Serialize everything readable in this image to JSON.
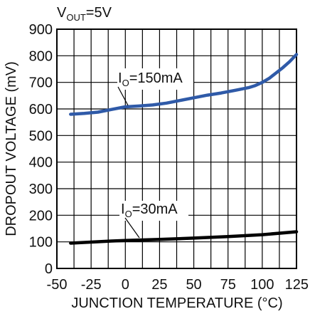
{
  "chart_data": {
    "type": "line",
    "title": "",
    "condition": {
      "label": "V",
      "sub": "OUT",
      "value": "=5V"
    },
    "xlabel": "JUNCTION TEMPERATURE (°C)",
    "ylabel": "DROPOUT VOLTAGE (mV)",
    "xlim": [
      -50,
      125
    ],
    "ylim": [
      0,
      900
    ],
    "xticks": [
      "-50",
      "-25",
      "0",
      "25",
      "50",
      "75",
      "100",
      "125"
    ],
    "yticks": [
      "0",
      "100",
      "200",
      "300",
      "400",
      "500",
      "600",
      "700",
      "800",
      "900"
    ],
    "grid": true,
    "series": [
      {
        "label_main": "I",
        "label_sub": "O",
        "label_rest": "=150mA",
        "color": "#2f5aa8",
        "x": [
          -40,
          -30,
          -20,
          -10,
          0,
          10,
          20,
          30,
          40,
          50,
          60,
          70,
          80,
          90,
          95,
          100,
          105,
          110,
          115,
          120,
          125
        ],
        "y": [
          580,
          583,
          588,
          598,
          608,
          611,
          615,
          622,
          632,
          642,
          652,
          660,
          670,
          680,
          688,
          700,
          715,
          735,
          755,
          778,
          805
        ]
      },
      {
        "label_main": "I",
        "label_sub": "O",
        "label_rest": "=30mA",
        "color": "#000000",
        "x": [
          -40,
          -25,
          -10,
          0,
          25,
          50,
          75,
          100,
          125
        ],
        "y": [
          95,
          99,
          103,
          105,
          109,
          114,
          120,
          127,
          138
        ]
      }
    ]
  }
}
